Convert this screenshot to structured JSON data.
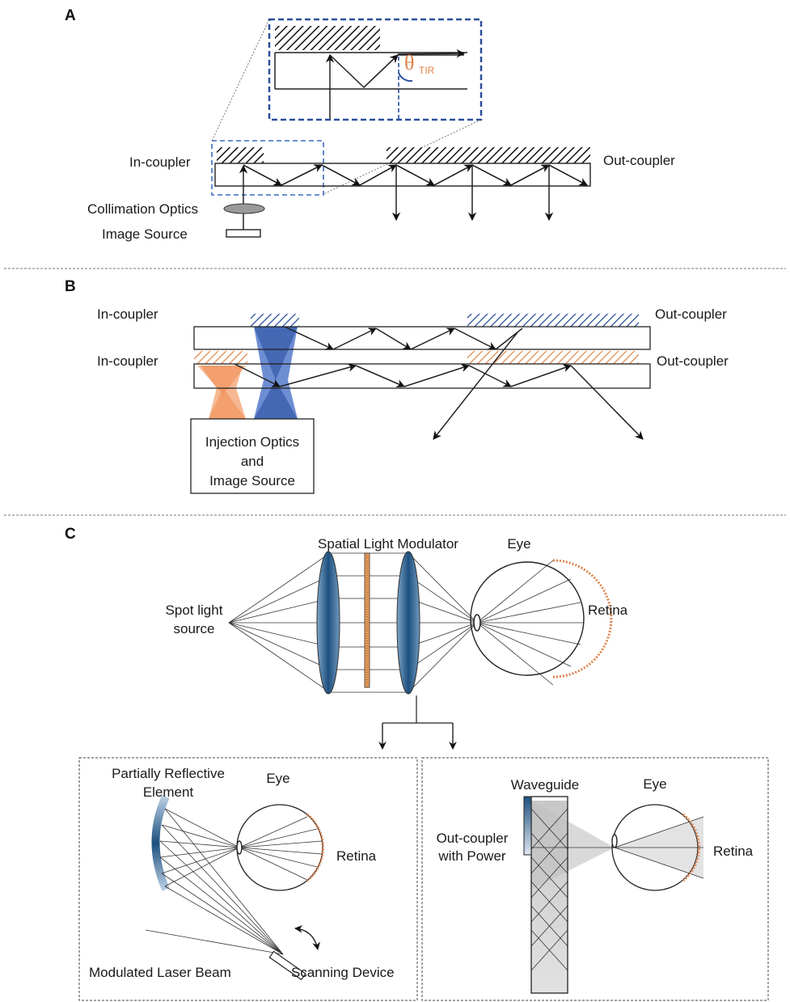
{
  "panels": {
    "a": {
      "letter": "A",
      "in_coupler": "In-coupler",
      "out_coupler": "Out-coupler",
      "collimation_optics": "Collimation Optics",
      "image_source": "Image Source",
      "theta_symbol": "θ",
      "theta_subscript": "TIR"
    },
    "b": {
      "letter": "B",
      "in_coupler_top": "In-coupler",
      "in_coupler_bottom": "In-coupler",
      "out_coupler_top": "Out-coupler",
      "out_coupler_bottom": "Out-coupler",
      "injection_line1": "Injection Optics",
      "injection_line2": "and",
      "injection_line3": "Image Source"
    },
    "c": {
      "letter": "C",
      "slm": "Spatial Light Modulator",
      "eye": "Eye",
      "spot_line1": "Spot light",
      "spot_line2": "source",
      "retina": "Retina",
      "left": {
        "pre_line1": "Partially Reflective",
        "pre_line2": "Element",
        "eye": "Eye",
        "retina": "Retina",
        "laser": "Modulated Laser Beam",
        "scanner": "Scanning Device"
      },
      "right": {
        "waveguide": "Waveguide",
        "eye": "Eye",
        "oc_line1": "Out-coupler",
        "oc_line2": "with Power",
        "retina": "Retina"
      }
    }
  },
  "colors": {
    "blue": "#2b4f8c",
    "dark_blue": "#1f3f73",
    "orange": "#e0834a",
    "lens_blue": "#2a5a8a"
  }
}
